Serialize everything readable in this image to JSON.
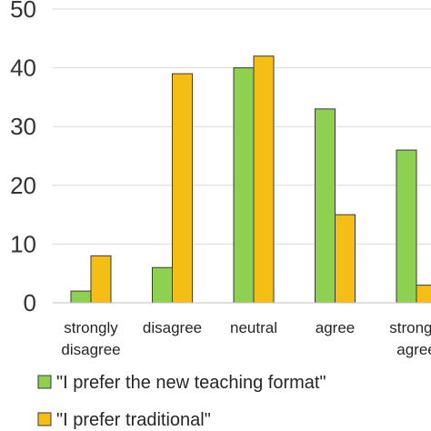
{
  "chart_data": {
    "type": "bar",
    "categories": [
      [
        "strongly",
        "disagree"
      ],
      [
        "disagree"
      ],
      [
        "neutral"
      ],
      [
        "agree"
      ],
      [
        "strongly",
        "agree"
      ]
    ],
    "series": [
      {
        "name": "\"I prefer the new teaching format\"",
        "color": "#8ed04f",
        "values": [
          2,
          6,
          40,
          33,
          26
        ]
      },
      {
        "name": "\"I prefer traditional\"",
        "color": "#f5be14",
        "values": [
          8,
          39,
          42,
          15,
          3
        ]
      }
    ],
    "yticks": [
      "0",
      "10",
      "20",
      "30",
      "40",
      "50"
    ],
    "ylim": [
      0,
      50
    ],
    "grid": true,
    "legend_position": "bottom"
  }
}
